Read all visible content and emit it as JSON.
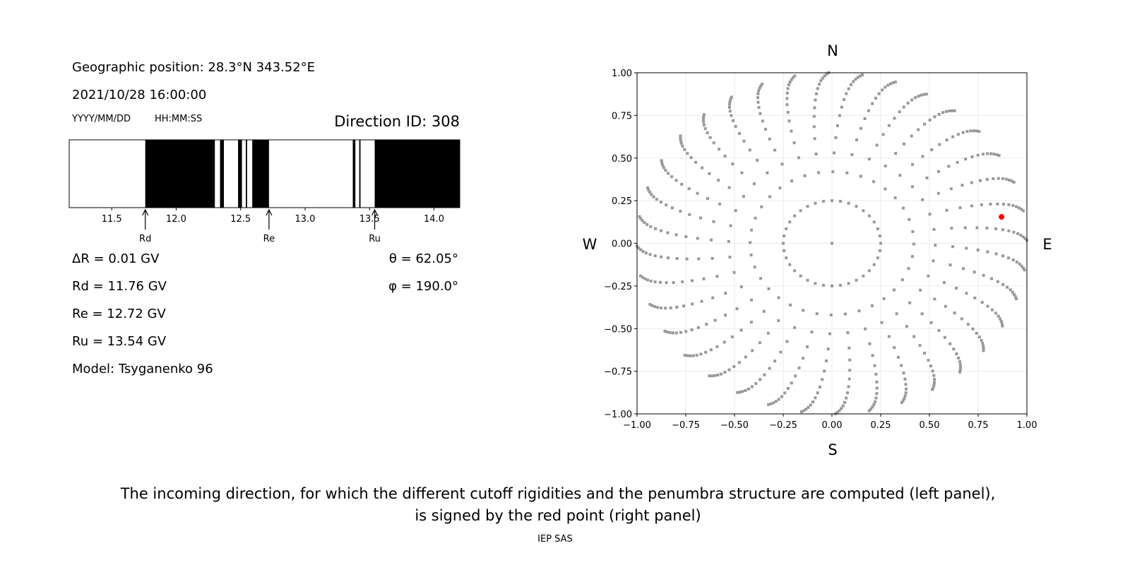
{
  "left_panel": {
    "geo_position": "Geographic position: 28.3°N 343.52°E",
    "datetime": "2021/10/28 16:00:00",
    "date_format": "YYYY/MM/DD",
    "time_format": "HH:MM:SS",
    "direction_id": "Direction ID: 308",
    "delta_r": "ΔR = 0.01 GV",
    "rd": "Rd = 11.76 GV",
    "re": "Re = 12.72 GV",
    "ru": "Ru = 13.54 GV",
    "model": "Model: Tsyganenko 96",
    "theta": "θ = 62.05°",
    "phi": "φ = 190.0°"
  },
  "caption": {
    "line1": "The incoming direction, for which the different cutoff rigidities and the penumbra structure are computed (left panel),",
    "line2": "is signed by the red point (right panel)"
  },
  "footer": "IEP SAS",
  "chart_data": [
    {
      "type": "bar",
      "subtype": "penumbra",
      "xlim": [
        11.17,
        14.2
      ],
      "xticks": [
        "11.5",
        "12.0",
        "12.5",
        "13.0",
        "13.5",
        "14.0"
      ],
      "xtick_values": [
        11.5,
        12.0,
        12.5,
        13.0,
        13.5,
        14.0
      ],
      "forbidden_color": "#000000",
      "allowed_color": "#ffffff",
      "forbidden_intervals": [
        [
          11.76,
          12.3
        ],
        [
          12.34,
          12.37
        ],
        [
          12.48,
          12.51
        ],
        [
          12.54,
          12.55
        ],
        [
          12.59,
          12.72
        ],
        [
          13.37,
          13.39
        ],
        [
          13.42,
          13.43
        ],
        [
          13.54,
          14.2
        ]
      ],
      "markers": [
        {
          "label": "Rd",
          "value": 11.76
        },
        {
          "label": "Re",
          "value": 12.72
        },
        {
          "label": "Ru",
          "value": 13.54
        }
      ]
    },
    {
      "type": "scatter",
      "xlim": [
        -1,
        1
      ],
      "ylim": [
        -1,
        1
      ],
      "xticks": [
        "−1.00",
        "−0.75",
        "−0.50",
        "−0.25",
        "0.00",
        "0.25",
        "0.50",
        "0.75",
        "1.00"
      ],
      "yticks": [
        "−1.00",
        "−0.75",
        "−0.50",
        "−0.25",
        "0.00",
        "0.25",
        "0.50",
        "0.75",
        "1.00"
      ],
      "tick_values": [
        -1,
        -0.75,
        -0.5,
        -0.25,
        0,
        0.25,
        0.5,
        0.75,
        1
      ],
      "grid": true,
      "compass": {
        "top": "N",
        "bottom": "S",
        "left": "W",
        "right": "E"
      },
      "point_color": "#999999",
      "highlight_color": "#ff0000",
      "direction_grid": {
        "azimuth_step_deg": 10,
        "radii": [
          0.25,
          0.42,
          0.53,
          0.62,
          0.69,
          0.75,
          0.8,
          0.845,
          0.88,
          0.91,
          0.935,
          0.955,
          0.97,
          0.982,
          0.992,
          1.0
        ],
        "center": [
          0,
          0
        ]
      },
      "highlight_point": [
        0.87,
        0.155
      ]
    }
  ]
}
